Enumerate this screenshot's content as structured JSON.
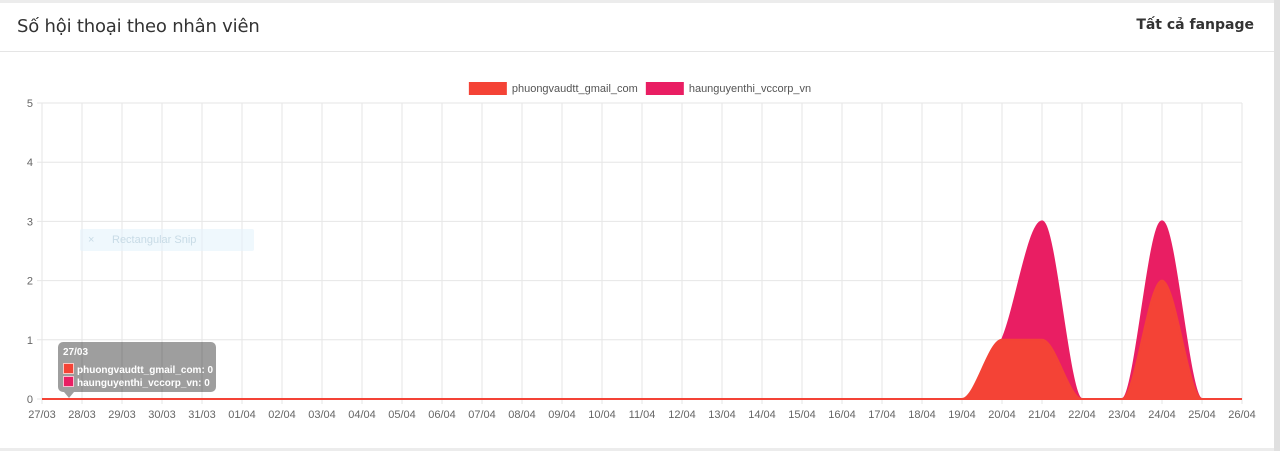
{
  "header": {
    "title": "Số hội thoại theo nhân viên",
    "scope_label": "Tất cả fanpage"
  },
  "colors": {
    "series_1": "#f44336",
    "series_2": "#e91e63",
    "grid": "#e6e6e6"
  },
  "chart_data": {
    "type": "area",
    "title": "",
    "xlabel": "",
    "ylabel": "",
    "ylim": [
      0,
      5
    ],
    "y_ticks": [
      "0",
      "1",
      "2",
      "3",
      "4",
      "5"
    ],
    "legend_position": "top",
    "categories": [
      "27/03",
      "28/03",
      "29/03",
      "30/03",
      "31/03",
      "01/04",
      "02/04",
      "03/04",
      "04/04",
      "05/04",
      "06/04",
      "07/04",
      "08/04",
      "09/04",
      "10/04",
      "11/04",
      "12/04",
      "13/04",
      "14/04",
      "15/04",
      "16/04",
      "17/04",
      "18/04",
      "19/04",
      "20/04",
      "21/04",
      "22/04",
      "23/04",
      "24/04",
      "25/04",
      "26/04"
    ],
    "series": [
      {
        "name": "phuongvaudtt_gmail_com",
        "color": "#f44336",
        "values": [
          0,
          0,
          0,
          0,
          0,
          0,
          0,
          0,
          0,
          0,
          0,
          0,
          0,
          0,
          0,
          0,
          0,
          0,
          0,
          0,
          0,
          0,
          0,
          0,
          1,
          1,
          0,
          0,
          2,
          0,
          0
        ]
      },
      {
        "name": "haunguyenthi_vccorp_vn",
        "color": "#e91e63",
        "values": [
          0,
          0,
          0,
          0,
          0,
          0,
          0,
          0,
          0,
          0,
          0,
          0,
          0,
          0,
          0,
          0,
          0,
          0,
          0,
          0,
          0,
          0,
          0,
          0,
          0,
          2,
          0,
          0,
          1,
          0,
          0
        ]
      }
    ]
  },
  "tooltip": {
    "title": "27/03",
    "rows": [
      "phuongvaudtt_gmail_com: 0",
      "haunguyenthi_vccorp_vn: 0"
    ]
  },
  "overlay": {
    "snip_label": "Rectangular Snip",
    "snip_icon": "×"
  }
}
